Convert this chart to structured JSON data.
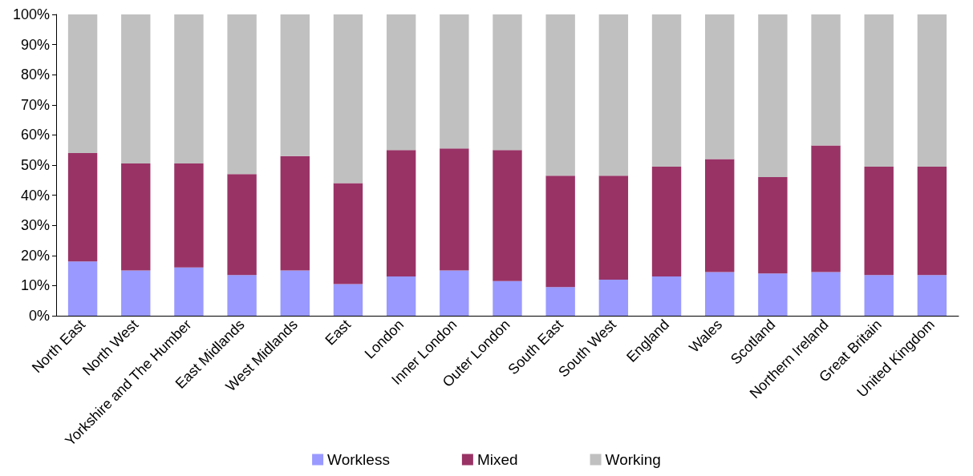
{
  "chart_data": {
    "type": "bar",
    "stacked": true,
    "categories": [
      "North East",
      "North West",
      "Yorkshire and The Humber",
      "East Midlands",
      "West Midlands",
      "East",
      "London",
      "Inner London",
      "Outer London",
      "South East",
      "South West",
      "England",
      "Wales",
      "Scotland",
      "Northern Ireland",
      "Great Britain",
      "United Kingdom"
    ],
    "series": [
      {
        "name": "Workless",
        "color": "#9999ff",
        "values": [
          18,
          15,
          16,
          13.5,
          15,
          10.5,
          13,
          15,
          11.5,
          9.5,
          12,
          13,
          14.5,
          14,
          14.5,
          13.5,
          13.5
        ]
      },
      {
        "name": "Mixed",
        "color": "#993366",
        "values": [
          36,
          35.5,
          34.5,
          33.5,
          38,
          33.5,
          42,
          40.5,
          43.5,
          37,
          34.5,
          36.5,
          37.5,
          32,
          42,
          36,
          36
        ]
      },
      {
        "name": "Working",
        "color": "#c0c0c0",
        "values": [
          46,
          49.5,
          49.5,
          53,
          47,
          56,
          45,
          44.5,
          45,
          53.5,
          53.5,
          50.5,
          48,
          54,
          43.5,
          50.5,
          50.5
        ]
      }
    ],
    "ylim": [
      0,
      100
    ],
    "yticks": [
      {
        "value": 0,
        "label": "0%"
      },
      {
        "value": 10,
        "label": "10%"
      },
      {
        "value": 20,
        "label": "20%"
      },
      {
        "value": 30,
        "label": "30%"
      },
      {
        "value": 40,
        "label": "40%"
      },
      {
        "value": 50,
        "label": "50%"
      },
      {
        "value": 60,
        "label": "60%"
      },
      {
        "value": 70,
        "label": "70%"
      },
      {
        "value": 80,
        "label": "80%"
      },
      {
        "value": 90,
        "label": "90%"
      },
      {
        "value": 100,
        "label": "100%"
      }
    ],
    "grid": false,
    "legend": "bottom"
  }
}
